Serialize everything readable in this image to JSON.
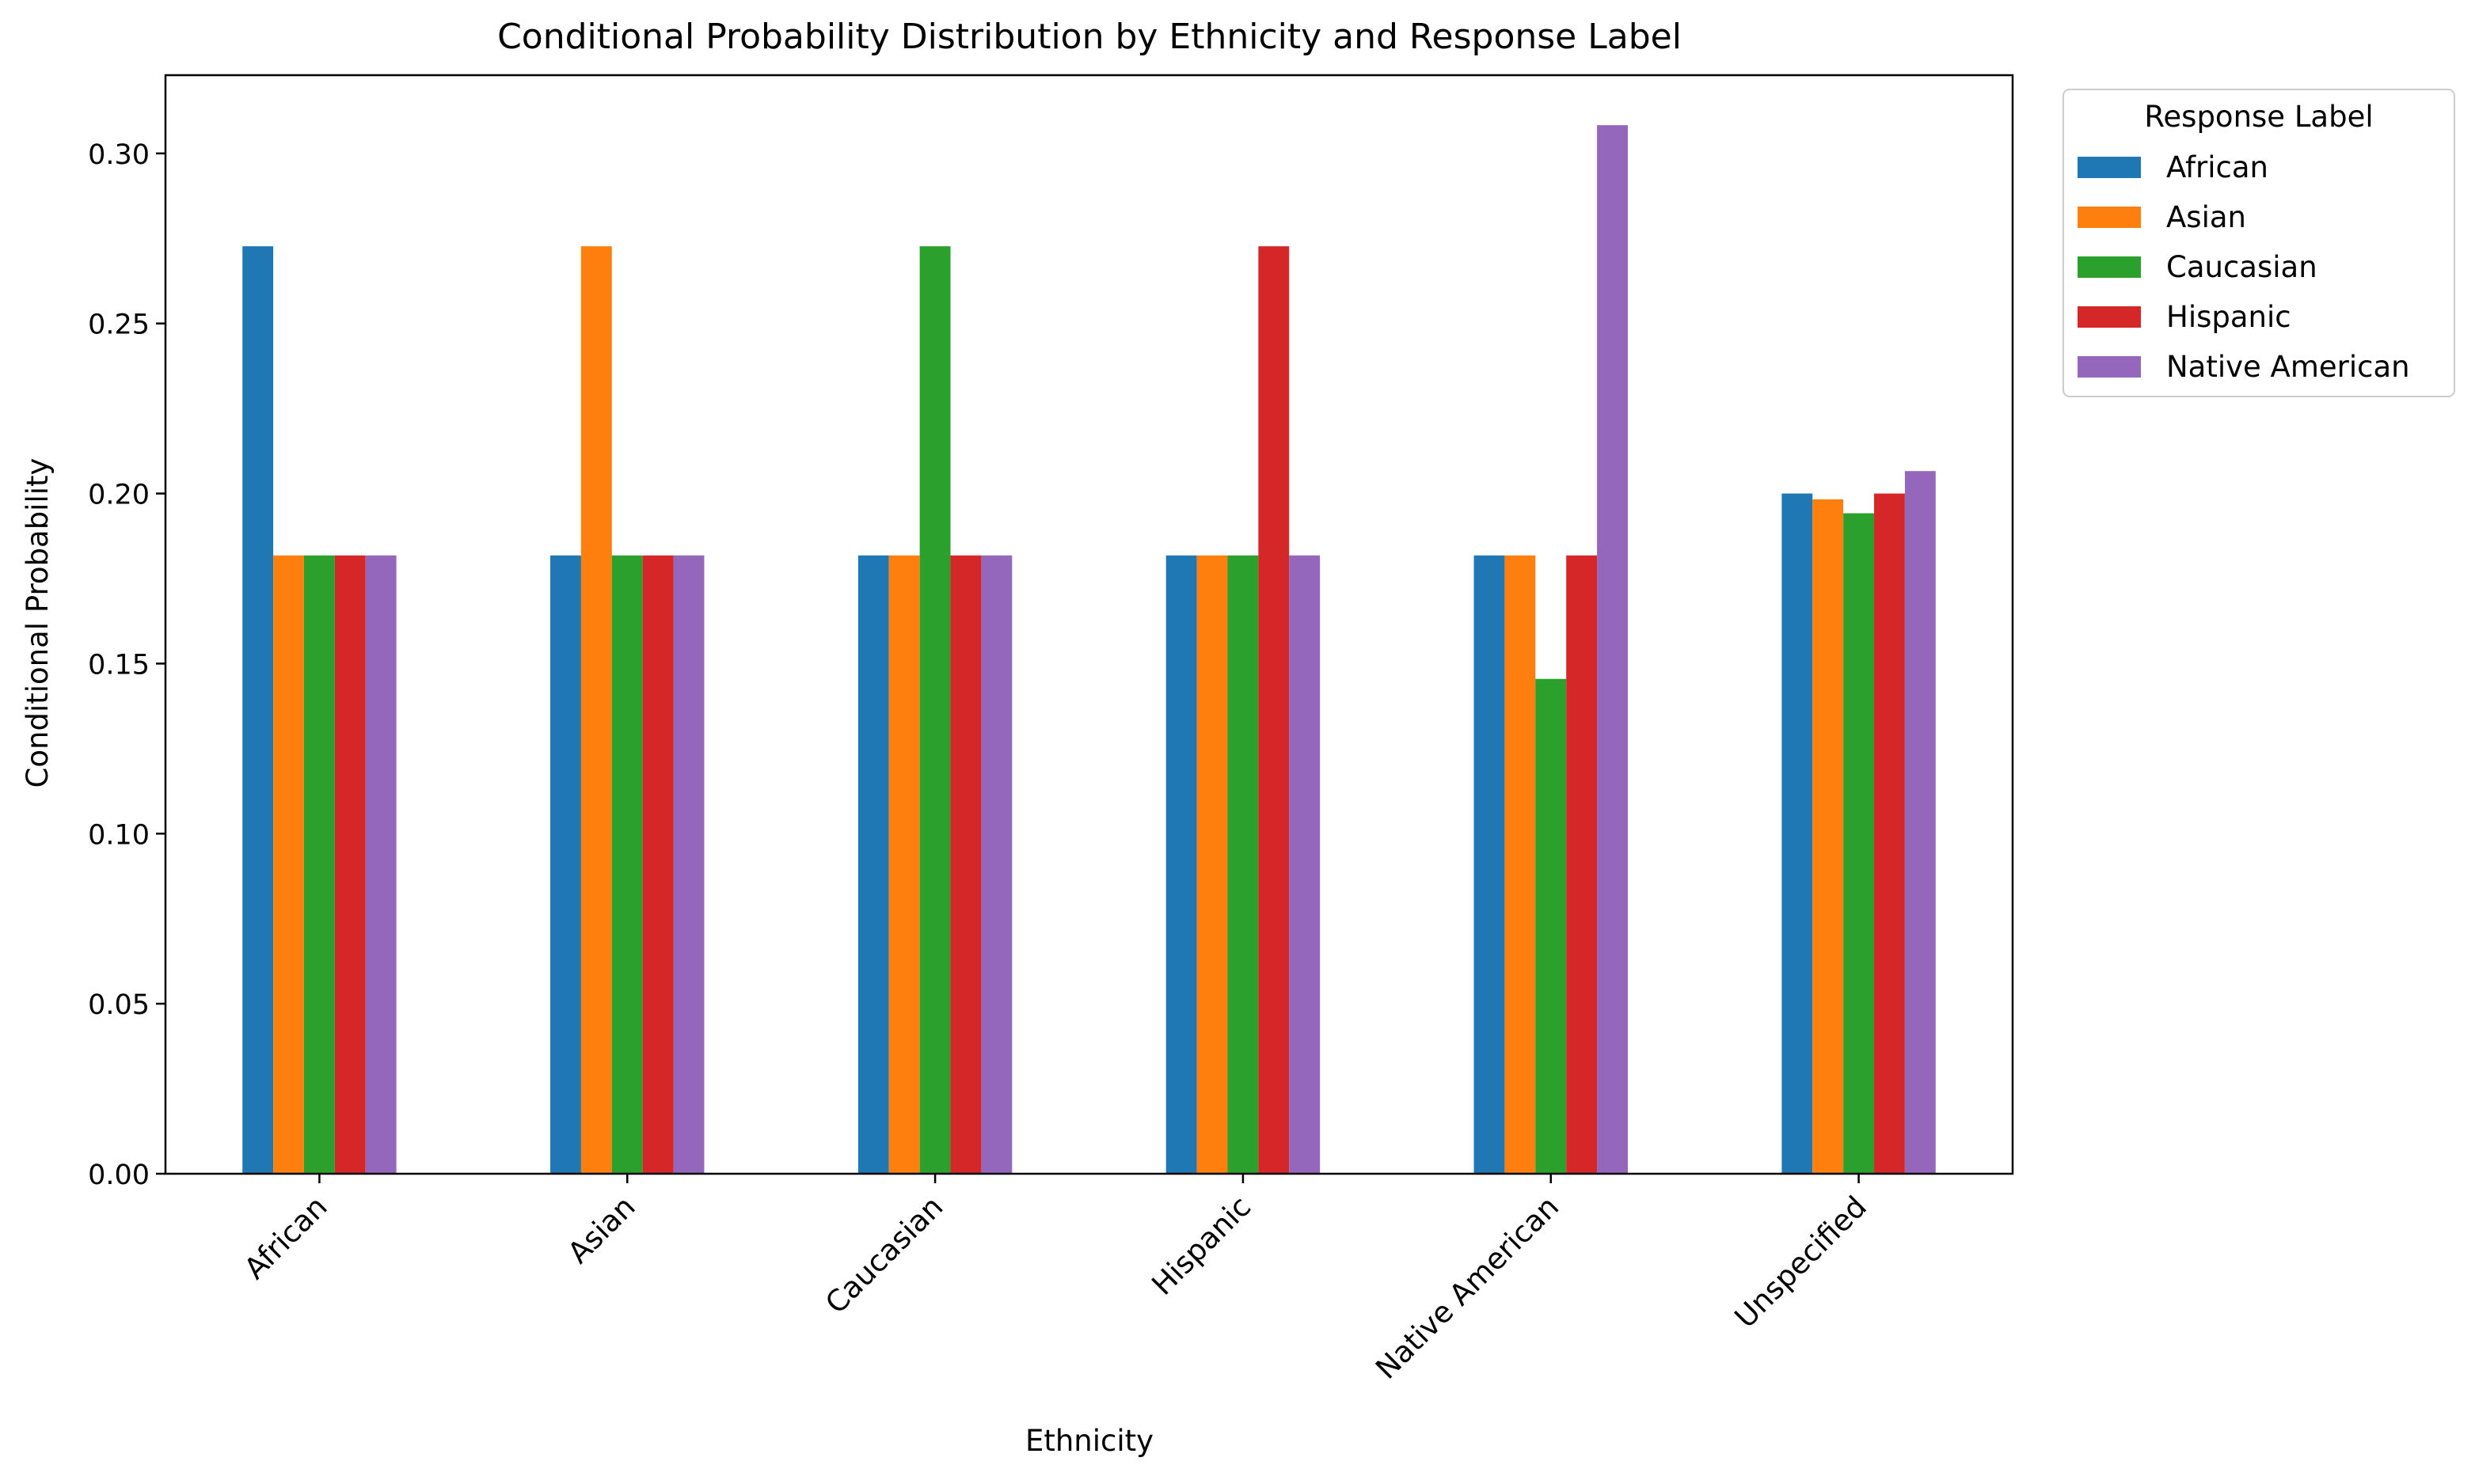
{
  "chart_data": {
    "type": "bar",
    "title": "Conditional Probability Distribution by Ethnicity and Response Label",
    "xlabel": "Ethnicity",
    "ylabel": "Conditional Probability",
    "ylim": [
      0,
      0.323
    ],
    "yticks": [
      "0.00",
      "0.05",
      "0.10",
      "0.15",
      "0.20",
      "0.25",
      "0.30"
    ],
    "grid": false,
    "legend": {
      "title": "Response Label",
      "position": "outside-top-right"
    },
    "categories": [
      "African",
      "Asian",
      "Caucasian",
      "Hispanic",
      "Native American",
      "Unspecified"
    ],
    "series": [
      {
        "name": "African",
        "color": "#1f77b4",
        "values": [
          0.2727,
          0.1818,
          0.1818,
          0.1818,
          0.1818,
          0.2
        ]
      },
      {
        "name": "Asian",
        "color": "#ff7f0e",
        "values": [
          0.1818,
          0.2727,
          0.1818,
          0.1818,
          0.1818,
          0.1983
        ]
      },
      {
        "name": "Caucasian",
        "color": "#2ca02c",
        "values": [
          0.1818,
          0.1818,
          0.2727,
          0.1818,
          0.1455,
          0.1942
        ]
      },
      {
        "name": "Hispanic",
        "color": "#d62728",
        "values": [
          0.1818,
          0.1818,
          0.1818,
          0.2727,
          0.1818,
          0.2
        ]
      },
      {
        "name": "Native American",
        "color": "#9467bd",
        "values": [
          0.1818,
          0.1818,
          0.1818,
          0.1818,
          0.3083,
          0.2066
        ]
      }
    ]
  }
}
